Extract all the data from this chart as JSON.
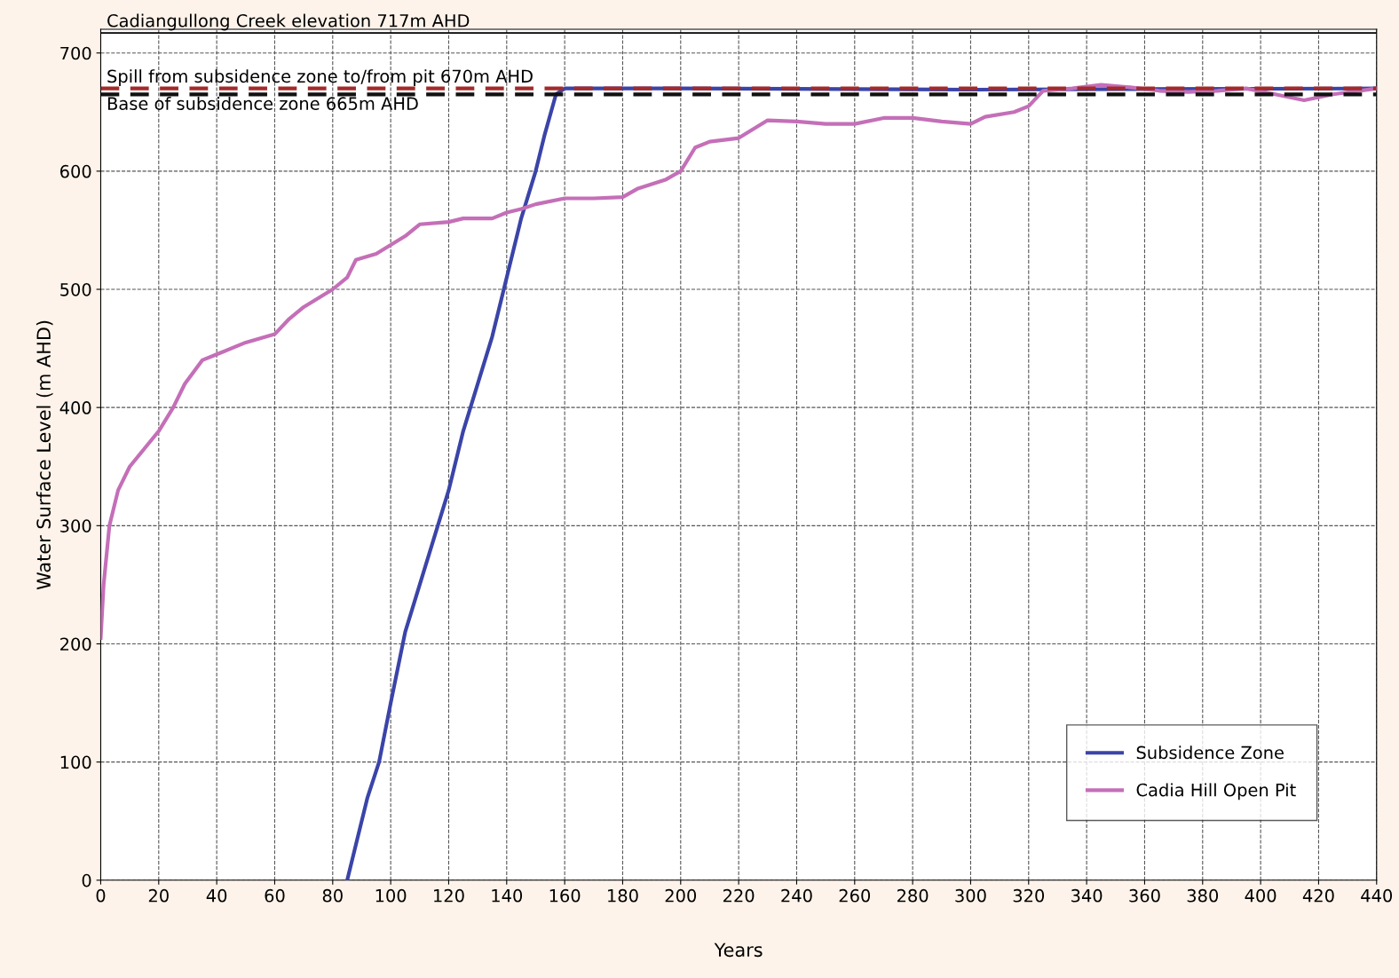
{
  "chart_data": {
    "type": "line",
    "xlabel": "Years",
    "ylabel": "Water Surface Level (m AHD)",
    "xlim": [
      0,
      440
    ],
    "xticks": [
      0,
      20,
      40,
      60,
      80,
      100,
      120,
      140,
      160,
      180,
      200,
      220,
      240,
      260,
      280,
      300,
      320,
      340,
      360,
      380,
      400,
      420,
      440
    ],
    "ylim": [
      0,
      720
    ],
    "yticks": [
      0,
      100,
      200,
      300,
      400,
      500,
      600,
      700
    ],
    "grid": true,
    "legend": "bottom right",
    "line_style": "solid",
    "ref_lines": [
      {
        "axis": "y",
        "value": 717,
        "label": "Cadiangullong Creek elevation 717m AHD",
        "color": "#000000",
        "line_style": "solid"
      },
      {
        "axis": "y",
        "value": 670,
        "label": "Spill from subsidence zone to/from pit 670m AHD",
        "color": "#a32a2a",
        "line_style": "dashed"
      },
      {
        "axis": "y",
        "value": 665,
        "label": "Base of subsidence zone 665m AHD",
        "color": "#111111",
        "line_style": "dashed"
      }
    ],
    "series": [
      {
        "name": "Subsidence Zone",
        "color": "#3a44a8",
        "x": [
          85,
          88,
          92,
          96,
          100,
          105,
          110,
          115,
          120,
          125,
          130,
          135,
          140,
          145,
          150,
          153,
          157,
          160,
          200,
          300,
          440
        ],
        "values": [
          0,
          30,
          70,
          100,
          150,
          210,
          250,
          290,
          330,
          380,
          420,
          460,
          510,
          560,
          600,
          630,
          665,
          670,
          670,
          669,
          670
        ]
      },
      {
        "name": "Cadia Hill Open Pit",
        "color": "#c46fb8",
        "x": [
          0,
          1,
          3,
          6,
          10,
          15,
          20,
          25,
          29,
          35,
          40,
          50,
          60,
          65,
          70,
          80,
          85,
          88,
          95,
          105,
          110,
          120,
          125,
          135,
          140,
          145,
          150,
          160,
          170,
          180,
          185,
          195,
          200,
          205,
          210,
          220,
          230,
          240,
          250,
          260,
          270,
          280,
          290,
          300,
          305,
          315,
          320,
          325,
          335,
          345,
          355,
          365,
          375,
          385,
          395,
          405,
          415,
          425,
          440
        ],
        "values": [
          205,
          250,
          300,
          330,
          350,
          365,
          380,
          400,
          420,
          440,
          445,
          455,
          462,
          475,
          485,
          500,
          510,
          525,
          530,
          545,
          555,
          557,
          560,
          560,
          565,
          568,
          572,
          577,
          577,
          578,
          585,
          593,
          600,
          620,
          625,
          628,
          643,
          642,
          640,
          640,
          645,
          645,
          642,
          640,
          646,
          650,
          655,
          668,
          670,
          673,
          671,
          668,
          667,
          668,
          670,
          665,
          660,
          665,
          670
        ]
      }
    ]
  }
}
